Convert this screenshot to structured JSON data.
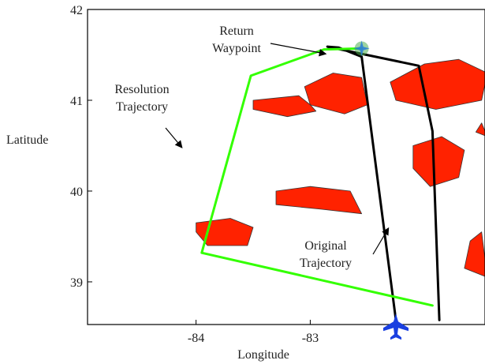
{
  "chart_data": {
    "type": "line",
    "xlabel": "Longitude",
    "ylabel": "Latitude",
    "xlim": [
      -84.95,
      -81.47
    ],
    "ylim": [
      38.53,
      42.0
    ],
    "xticks": [
      -84,
      -83
    ],
    "yticks": [
      39,
      40,
      41,
      42
    ],
    "xtick_labels": [
      "-84",
      "-83"
    ],
    "ytick_labels": [
      "39",
      "40",
      "41",
      "42"
    ],
    "grid": false,
    "series": [
      {
        "name": "Original Trajectory",
        "color": "#000000",
        "x": [
          -82.25,
          -82.55,
          -82.75,
          -82.85,
          -82.05,
          -81.93,
          -81.87
        ],
        "y": [
          38.58,
          41.48,
          41.58,
          41.59,
          41.38,
          40.66,
          38.58
        ]
      },
      {
        "name": "Resolution Trajectory",
        "color": "#33ff00",
        "x": [
          -82.55,
          -82.88,
          -83.52,
          -83.95,
          -81.93
        ],
        "y": [
          41.57,
          41.56,
          41.27,
          39.32,
          38.74
        ]
      }
    ],
    "weather_cells": {
      "color": "#ff2200",
      "cells": [
        {
          "x": [
            -83.5,
            -83.1,
            -83.0,
            -82.95,
            -83.2,
            -83.5
          ],
          "y": [
            41.0,
            41.05,
            40.95,
            40.88,
            40.82,
            40.9
          ]
        },
        {
          "x": [
            -83.05,
            -82.8,
            -82.55,
            -82.5,
            -82.7,
            -83.0
          ],
          "y": [
            41.15,
            41.3,
            41.25,
            40.95,
            40.85,
            40.95
          ]
        },
        {
          "x": [
            -82.3,
            -82.0,
            -81.7,
            -81.45,
            -81.5,
            -81.9,
            -82.25
          ],
          "y": [
            41.2,
            41.4,
            41.45,
            41.3,
            41.0,
            40.9,
            41.0
          ]
        },
        {
          "x": [
            -82.1,
            -81.85,
            -81.65,
            -81.7,
            -81.95,
            -82.1
          ],
          "y": [
            40.5,
            40.6,
            40.45,
            40.15,
            40.05,
            40.25
          ]
        },
        {
          "x": [
            -83.3,
            -83.0,
            -82.65,
            -82.55,
            -82.9,
            -83.3
          ],
          "y": [
            40.0,
            40.05,
            40.0,
            39.75,
            39.8,
            39.85
          ]
        },
        {
          "x": [
            -84.0,
            -83.7,
            -83.5,
            -83.55,
            -83.9,
            -84.0
          ],
          "y": [
            39.65,
            39.7,
            39.6,
            39.4,
            39.4,
            39.55
          ]
        },
        {
          "x": [
            -81.5,
            -81.45,
            -81.65,
            -81.6
          ],
          "y": [
            39.55,
            39.05,
            39.15,
            39.45
          ]
        },
        {
          "x": [
            -81.5,
            -81.45,
            -81.55
          ],
          "y": [
            40.75,
            40.6,
            40.65
          ]
        }
      ]
    },
    "annotations": [
      {
        "id": "return",
        "lines": [
          "Return",
          "Waypoint"
        ],
        "x": -82.55,
        "y": 41.57
      },
      {
        "id": "resolution",
        "lines": [
          "Resolution",
          "Trajectory"
        ],
        "x": -83.7,
        "y": 40.95
      },
      {
        "id": "original",
        "lines": [
          "Original",
          "Trajectory"
        ],
        "x": -82.45,
        "y": 39.5
      }
    ]
  }
}
